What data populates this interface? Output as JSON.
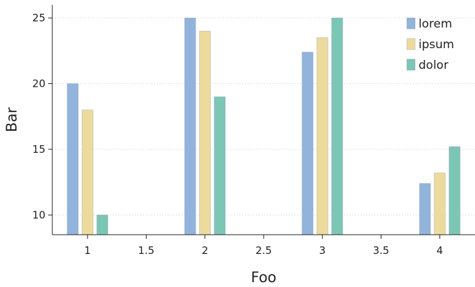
{
  "chart_data": {
    "type": "bar",
    "title": "",
    "xlabel": "Foo",
    "ylabel": "Bar",
    "x": [
      1,
      2,
      3,
      4
    ],
    "xlim": [
      0.7,
      4.3
    ],
    "xticks": [
      1,
      1.5,
      2,
      2.5,
      3,
      3.5,
      4
    ],
    "xtick_labels": [
      "1",
      "1.5",
      "2",
      "2.5",
      "3",
      "3.5",
      "4"
    ],
    "ylim": [
      8.5,
      26
    ],
    "yticks": [
      10,
      15,
      20,
      25
    ],
    "ytick_labels": [
      "10",
      "15",
      "20",
      "25"
    ],
    "grid": "horizontal dotted",
    "legend_position": "top-right",
    "series": [
      {
        "name": "lorem",
        "color": "#92b4dc",
        "values": [
          20,
          25,
          22.4,
          12.4
        ]
      },
      {
        "name": "ipsum",
        "color": "#ecdb9c",
        "values": [
          18,
          24,
          23.5,
          13.2
        ]
      },
      {
        "name": "dolor",
        "color": "#7cc6b6",
        "values": [
          10,
          19,
          25,
          15.2
        ]
      }
    ]
  }
}
